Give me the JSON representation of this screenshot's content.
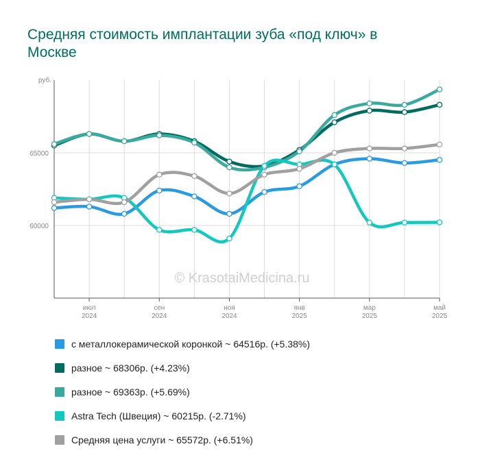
{
  "title": "Средняя стоимость имплантации зуба «под ключ» в Москве",
  "watermark": "© KrasotaiMedicina.ru",
  "chart_data": {
    "type": "line",
    "title": "Средняя стоимость имплантации зуба «под ключ» в Москве",
    "y_unit_label": "руб.",
    "ylim": [
      55000,
      70000
    ],
    "y_ticks": [
      {
        "value": 60000,
        "label": "60000"
      },
      {
        "value": 65000,
        "label": "65000"
      }
    ],
    "x": [
      "2024-06",
      "2024-07",
      "2024-08",
      "2024-09",
      "2024-10",
      "2024-11",
      "2024-12",
      "2025-01",
      "2025-02",
      "2025-03",
      "2025-04",
      "2025-05"
    ],
    "x_ticks": [
      {
        "index": 1,
        "month": "июл",
        "year": "2024"
      },
      {
        "index": 3,
        "month": "сен",
        "year": "2024"
      },
      {
        "index": 5,
        "month": "ноя",
        "year": "2024"
      },
      {
        "index": 7,
        "month": "янв",
        "year": "2025"
      },
      {
        "index": 9,
        "month": "мар",
        "year": "2025"
      },
      {
        "index": 11,
        "month": "май",
        "year": "2025"
      }
    ],
    "grid": true,
    "legend_position": "bottom",
    "series": [
      {
        "name": "с металлокерамической коронкой",
        "legend": "с металлокерамической коронкой ~ 64516р. (+5.38%)",
        "color": "#2a9be0",
        "values": [
          61200,
          61300,
          60800,
          62400,
          62000,
          60800,
          62300,
          62700,
          64200,
          64600,
          64300,
          64516
        ]
      },
      {
        "name": "разное",
        "legend": "разное ~ 68306р. (+4.23%)",
        "color": "#006b5e",
        "values": [
          65500,
          66300,
          65800,
          66300,
          65800,
          64400,
          64100,
          65200,
          67100,
          67900,
          67800,
          68306
        ]
      },
      {
        "name": "разное",
        "legend": "разное ~ 69363р. (+5.69%)",
        "color": "#3aaa9f",
        "values": [
          65600,
          66300,
          65800,
          66200,
          65700,
          64000,
          64000,
          65100,
          67600,
          68400,
          68300,
          69363
        ]
      },
      {
        "name": "Astra Tech (Швеция)",
        "legend": "Astra Tech (Швеция) ~ 60215р. (-2.71%)",
        "color": "#14c8c0",
        "values": [
          61900,
          61800,
          61900,
          59700,
          59700,
          59100,
          64100,
          64200,
          64200,
          60200,
          60200,
          60215
        ]
      },
      {
        "name": "Средняя цена услуги",
        "legend": "Средняя цена услуги ~ 65572р. (+6.51%)",
        "color": "#a0a0a0",
        "values": [
          61600,
          61800,
          61600,
          63500,
          63400,
          62200,
          63500,
          63900,
          65000,
          65300,
          65300,
          65572
        ]
      }
    ]
  }
}
